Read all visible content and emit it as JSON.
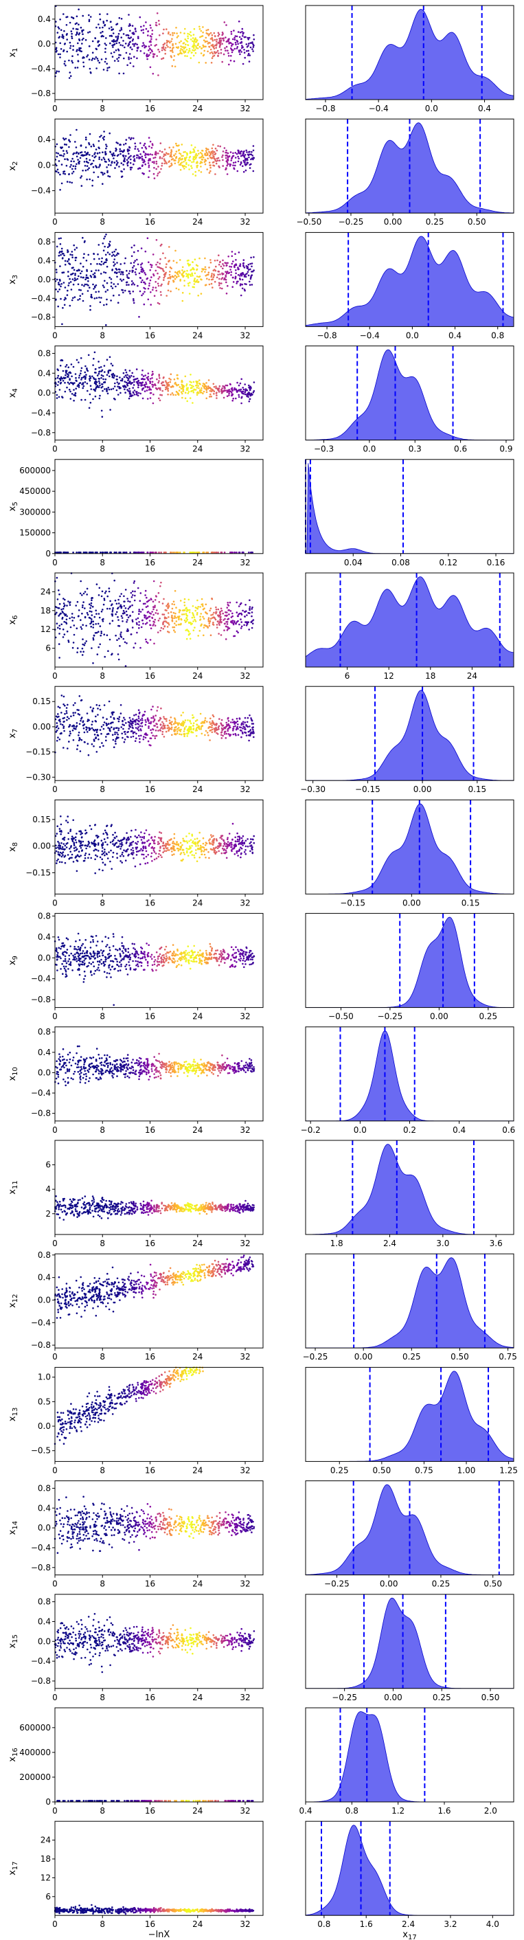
{
  "chart_data": {
    "type": "trace_grid",
    "panels": [
      {
        "ylabel": "x_1",
        "yticks": [
          -0.8,
          -0.4,
          0.0,
          0.4
        ],
        "ylim": [
          -0.9,
          0.62
        ],
        "xlim": [
          -0.95,
          0.62
        ],
        "xticks": [
          -0.8,
          -0.4,
          0.0,
          0.4
        ],
        "peak": -0.05,
        "width": 0.28,
        "skew": 0,
        "lines": [
          -0.6,
          -0.06,
          0.38
        ],
        "scatter_center": 0.0,
        "scatter_spread": 0.3,
        "trend": 0,
        "xlabel": ""
      },
      {
        "ylabel": "x_2",
        "yticks": [
          -0.4,
          0.0,
          0.4
        ],
        "ylim": [
          -0.75,
          0.72
        ],
        "xlim": [
          -0.52,
          0.72
        ],
        "xticks": [
          -0.5,
          -0.25,
          0.0,
          0.25,
          0.5
        ],
        "peak": 0.1,
        "width": 0.18,
        "skew": 0,
        "lines": [
          -0.27,
          0.1,
          0.52
        ],
        "scatter_center": 0.1,
        "scatter_spread": 0.22,
        "trend": 0,
        "xlabel": ""
      },
      {
        "ylabel": "x_3",
        "yticks": [
          -0.8,
          -0.4,
          0.0,
          0.4,
          0.8
        ],
        "ylim": [
          -1.0,
          1.0
        ],
        "xlim": [
          -1.0,
          0.95
        ],
        "xticks": [
          -0.8,
          -0.4,
          0.0,
          0.4,
          0.8
        ],
        "peak": 0.15,
        "width": 0.4,
        "skew": 0,
        "lines": [
          -0.6,
          0.15,
          0.85
        ],
        "scatter_center": 0.1,
        "scatter_spread": 0.45,
        "trend": 0,
        "xlabel": ""
      },
      {
        "ylabel": "x_4",
        "yticks": [
          -0.8,
          -0.4,
          0.0,
          0.4,
          0.8
        ],
        "ylim": [
          -0.95,
          0.95
        ],
        "xlim": [
          -0.42,
          0.95
        ],
        "xticks": [
          -0.3,
          0.0,
          0.3,
          0.6,
          0.9
        ],
        "peak": 0.17,
        "width": 0.15,
        "skew": 0,
        "lines": [
          -0.08,
          0.17,
          0.55
        ],
        "scatter_center": 0.15,
        "scatter_spread": 0.22,
        "trend": -0.15,
        "xlabel": ""
      },
      {
        "ylabel": "x_5",
        "yticks": [
          0,
          150000,
          300000,
          450000,
          600000
        ],
        "ylim": [
          0,
          680000
        ],
        "xlim": [
          0,
          0.175
        ],
        "xticks": [
          0.04,
          0.08,
          0.12,
          0.16
        ],
        "peak": 0.002,
        "width": 0.008,
        "skew": 1,
        "lines": [
          0.0,
          0.004,
          0.082
        ],
        "scatter_center": 0,
        "scatter_spread": 0,
        "trend": 0,
        "xlabel": ""
      },
      {
        "ylabel": "x_6",
        "yticks": [
          6,
          12,
          18,
          24
        ],
        "ylim": [
          0,
          30
        ],
        "xlim": [
          0,
          30
        ],
        "xticks": [
          6,
          12,
          18,
          24
        ],
        "peak": 16,
        "width": 8,
        "skew": 0,
        "lines": [
          5,
          16,
          28
        ],
        "scatter_center": 16,
        "scatter_spread": 7,
        "trend": 0,
        "xlabel": ""
      },
      {
        "ylabel": "x_7",
        "yticks": [
          -0.3,
          -0.15,
          0.0,
          0.15
        ],
        "ylim": [
          -0.32,
          0.24
        ],
        "xlim": [
          -0.32,
          0.25
        ],
        "xticks": [
          -0.3,
          -0.15,
          0.0,
          0.15
        ],
        "peak": 0.0,
        "width": 0.06,
        "skew": 0,
        "lines": [
          -0.13,
          0.0,
          0.14
        ],
        "scatter_center": 0.0,
        "scatter_spread": 0.07,
        "trend": 0,
        "xlabel": ""
      },
      {
        "ylabel": "x_8",
        "yticks": [
          -0.15,
          0.0,
          0.15
        ],
        "ylim": [
          -0.27,
          0.26
        ],
        "xlim": [
          -0.27,
          0.26
        ],
        "xticks": [
          -0.15,
          0.0,
          0.15
        ],
        "peak": 0.02,
        "width": 0.06,
        "skew": 0,
        "lines": [
          -0.1,
          0.02,
          0.15
        ],
        "scatter_center": 0.0,
        "scatter_spread": 0.07,
        "trend": 0,
        "xlabel": ""
      },
      {
        "ylabel": "x_9",
        "yticks": [
          -0.8,
          -0.4,
          0.0,
          0.4,
          0.8
        ],
        "ylim": [
          -0.95,
          0.85
        ],
        "xlim": [
          -0.68,
          0.38
        ],
        "xticks": [
          -0.5,
          -0.25,
          0.0,
          0.25
        ],
        "peak": 0.02,
        "width": 0.08,
        "skew": 0,
        "lines": [
          -0.2,
          0.02,
          0.18
        ],
        "scatter_center": 0.02,
        "scatter_spread": 0.2,
        "trend": 0,
        "xlabel": ""
      },
      {
        "ylabel": "x_10",
        "yticks": [
          -0.8,
          -0.4,
          0.0,
          0.4,
          0.8
        ],
        "ylim": [
          -0.95,
          0.9
        ],
        "xlim": [
          -0.22,
          0.62
        ],
        "xticks": [
          -0.2,
          0.0,
          0.2,
          0.4,
          0.6
        ],
        "peak": 0.1,
        "width": 0.05,
        "skew": 0,
        "lines": [
          -0.08,
          0.1,
          0.22
        ],
        "scatter_center": 0.1,
        "scatter_spread": 0.15,
        "trend": 0,
        "xlabel": ""
      },
      {
        "ylabel": "x_11",
        "yticks": [
          2,
          4,
          6
        ],
        "ylim": [
          0.3,
          8.0
        ],
        "xlim": [
          1.45,
          3.8
        ],
        "xticks": [
          1.8,
          2.4,
          3.0,
          3.6
        ],
        "peak": 2.45,
        "width": 0.25,
        "skew": 0,
        "lines": [
          1.98,
          2.48,
          3.35
        ],
        "scatter_center": 2.5,
        "scatter_spread": 0.4,
        "trend": 0,
        "xlabel": ""
      },
      {
        "ylabel": "x_12",
        "yticks": [
          -0.8,
          -0.4,
          0.0,
          0.4,
          0.8
        ],
        "ylim": [
          -0.85,
          0.82
        ],
        "xlim": [
          -0.3,
          0.78
        ],
        "xticks": [
          -0.25,
          0.0,
          0.25,
          0.5,
          0.75
        ],
        "peak": 0.4,
        "width": 0.12,
        "skew": 0,
        "lines": [
          -0.05,
          0.38,
          0.63
        ],
        "scatter_center": 0.35,
        "scatter_spread": 0.15,
        "trend": 0.35,
        "xlabel": ""
      },
      {
        "ylabel": "x_13",
        "yticks": [
          -0.5,
          0.0,
          0.5,
          1.0
        ],
        "ylim": [
          -0.72,
          1.2
        ],
        "xlim": [
          0.05,
          1.28
        ],
        "xticks": [
          0.25,
          0.5,
          0.75,
          1.0,
          1.25
        ],
        "peak": 0.9,
        "width": 0.15,
        "skew": 0,
        "lines": [
          0.43,
          0.85,
          1.13
        ],
        "scatter_center": 0.9,
        "scatter_spread": 0.15,
        "trend": 0.9,
        "xlabel": ""
      },
      {
        "ylabel": "x_14",
        "yticks": [
          -0.8,
          -0.4,
          0.0,
          0.4,
          0.8
        ],
        "ylim": [
          -0.95,
          0.95
        ],
        "xlim": [
          -0.4,
          0.6
        ],
        "xticks": [
          -0.25,
          0.0,
          0.25,
          0.5
        ],
        "peak": 0.02,
        "width": 0.12,
        "skew": 0,
        "lines": [
          -0.17,
          0.1,
          0.53
        ],
        "scatter_center": 0.05,
        "scatter_spread": 0.25,
        "trend": 0,
        "xlabel": ""
      },
      {
        "ylabel": "x_15",
        "yticks": [
          -0.8,
          -0.4,
          0.0,
          0.4,
          0.8
        ],
        "ylim": [
          -0.95,
          0.95
        ],
        "xlim": [
          -0.45,
          0.62
        ],
        "xticks": [
          -0.25,
          0.0,
          0.25,
          0.5
        ],
        "peak": 0.03,
        "width": 0.08,
        "skew": 0,
        "lines": [
          -0.15,
          0.05,
          0.27
        ],
        "scatter_center": 0.03,
        "scatter_spread": 0.2,
        "trend": 0,
        "xlabel": ""
      },
      {
        "ylabel": "x_16",
        "yticks": [
          0,
          200000,
          400000,
          600000
        ],
        "ylim": [
          0,
          760000
        ],
        "xlim": [
          0.4,
          2.2
        ],
        "xticks": [
          0.4,
          0.8,
          1.2,
          1.6,
          2.0
        ],
        "peak": 0.93,
        "width": 0.12,
        "skew": 0,
        "lines": [
          0.7,
          0.93,
          1.43
        ],
        "scatter_center": 0,
        "scatter_spread": 0,
        "trend": 0,
        "xlabel": ""
      },
      {
        "ylabel": "x_17",
        "yticks": [
          6,
          12,
          18,
          24
        ],
        "ylim": [
          0,
          30
        ],
        "xlim": [
          0.45,
          4.4
        ],
        "xticks": [
          0.8,
          1.6,
          2.4,
          3.2,
          4.0
        ],
        "peak": 1.45,
        "width": 0.3,
        "skew": 0,
        "lines": [
          0.75,
          1.5,
          2.05
        ],
        "scatter_center": 1.6,
        "scatter_spread": 0.5,
        "trend": 0,
        "xlabel": "x_17"
      }
    ],
    "trace_xticks": [
      0,
      8,
      16,
      24,
      32
    ],
    "trace_xlim": [
      0,
      35
    ],
    "trace_xlabel": "−lnX",
    "colors": {
      "fill": "#5050f0",
      "line": "#0000cc",
      "quantile": "#0000ff"
    }
  }
}
